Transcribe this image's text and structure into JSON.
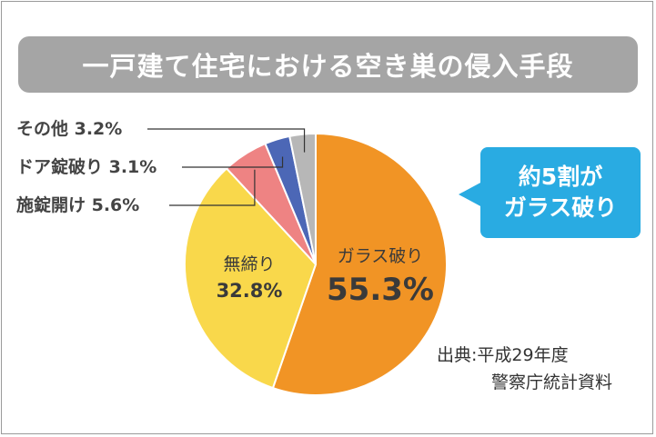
{
  "title": "一戸建て住宅における空き巣の侵入手段",
  "chart_data": {
    "type": "pie",
    "title": "一戸建て住宅における空き巣の侵入手段",
    "slices": [
      {
        "label": "ガラス破り",
        "value": 55.3,
        "value_text": "55.3%",
        "color": "#f19425"
      },
      {
        "label": "無締り",
        "value": 32.8,
        "value_text": "32.8%",
        "color": "#f9d84b"
      },
      {
        "label": "施錠開け",
        "value": 5.6,
        "value_text": "5.6%",
        "color": "#ee8383"
      },
      {
        "label": "ドア錠破り",
        "value": 3.1,
        "value_text": "3.1%",
        "color": "#4c67b6"
      },
      {
        "label": "その他",
        "value": 3.2,
        "value_text": "3.2%",
        "color": "#b7b7b7"
      }
    ]
  },
  "external_labels": {
    "sonota": "その他 3.2%",
    "door": "ドア錠破り 3.1%",
    "sejo": "施錠開け 5.6%"
  },
  "callout": {
    "line1": "約5割が",
    "line2": "ガラス破り"
  },
  "source": {
    "line1": "出典:平成29年度",
    "line2": "警察庁統計資料"
  }
}
